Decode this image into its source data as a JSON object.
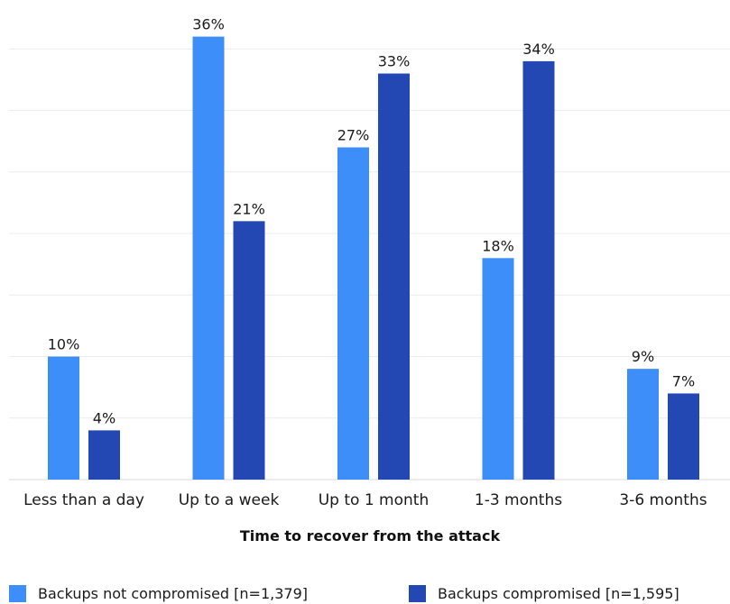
{
  "chart_data": {
    "type": "bar",
    "title": "",
    "xlabel": "Time to recover from the attack",
    "ylabel": "",
    "ylim": [
      0,
      36
    ],
    "grid": true,
    "legend_position": "bottom",
    "categories": [
      "Less than a day",
      "Up to a week",
      "Up to 1 month",
      "1-3 months",
      "3-6 months"
    ],
    "series": [
      {
        "name": "Backups not compromised [n=1,379]",
        "color": "#3d8ef8",
        "values": [
          10,
          36,
          27,
          18,
          9
        ],
        "labels": [
          "10%",
          "36%",
          "27%",
          "18%",
          "9%"
        ]
      },
      {
        "name": "Backups compromised [n=1,595]",
        "color": "#2347b3",
        "values": [
          4,
          21,
          33,
          34,
          7
        ],
        "labels": [
          "4%",
          "21%",
          "33%",
          "34%",
          "7%"
        ]
      }
    ]
  }
}
